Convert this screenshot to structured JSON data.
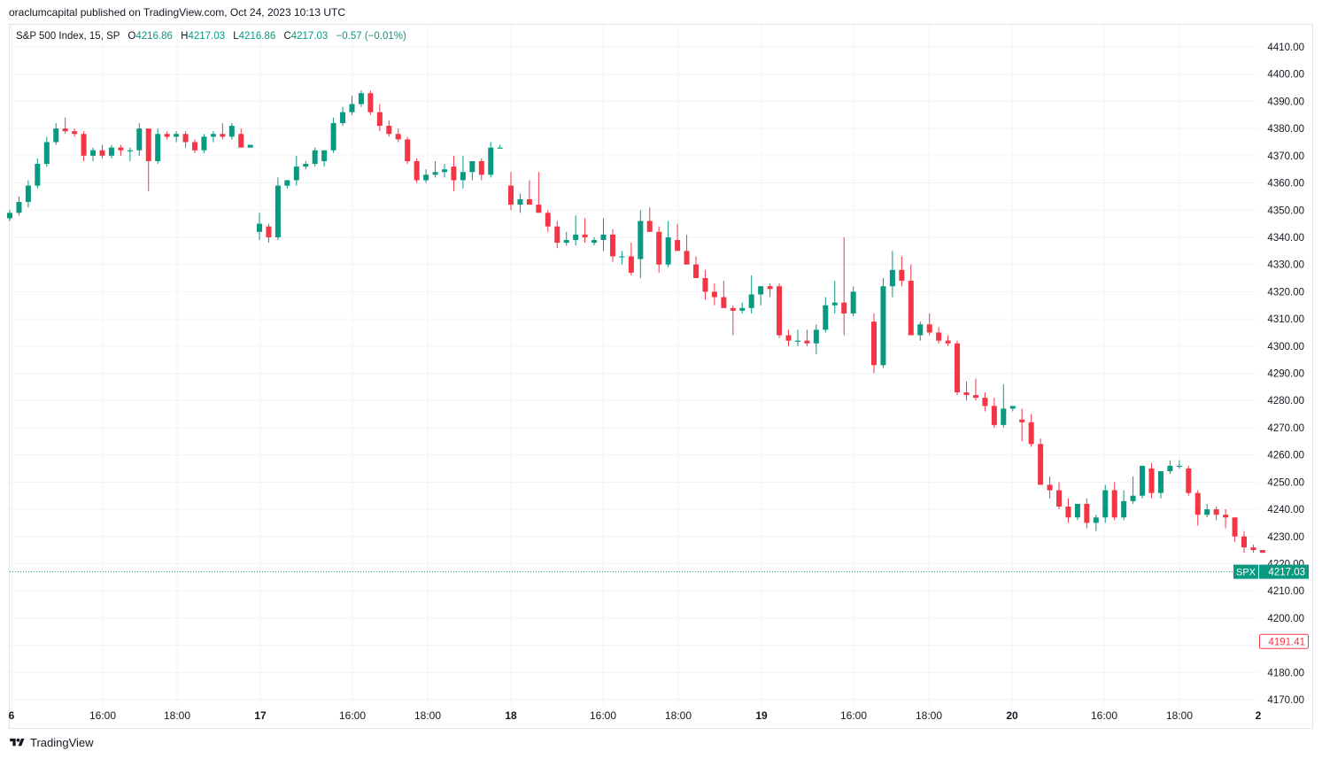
{
  "publisher_line": "oraclumcapital published on TradingView.com, Oct 24, 2023 10:13 UTC",
  "legend": {
    "symbol": "S&P 500 Index, 15, SP",
    "o_label": "O",
    "o_value": "4216.86",
    "h_label": "H",
    "h_value": "4217.03",
    "l_label": "L",
    "l_value": "4216.86",
    "c_label": "C",
    "c_value": "4217.03",
    "change": "−0.57 (−0.01%)"
  },
  "footer": {
    "brand": "TradingView"
  },
  "colors": {
    "up": "#089981",
    "down": "#F23645",
    "grid": "#F0F3FA",
    "text": "#131722"
  },
  "chart_data": {
    "type": "candlestick",
    "ylim": [
      4170,
      4410
    ],
    "yticks": [
      "4410.00",
      "4400.00",
      "4390.00",
      "4380.00",
      "4370.00",
      "4360.00",
      "4350.00",
      "4340.00",
      "4330.00",
      "4320.00",
      "4310.00",
      "4300.00",
      "4290.00",
      "4280.00",
      "4270.00",
      "4260.00",
      "4250.00",
      "4240.00",
      "4230.00",
      "4220.00",
      "4210.00",
      "4200.00",
      "4190.00",
      "4180.00",
      "4170.00"
    ],
    "xticks": [
      "6",
      "16:00",
      "18:00",
      "17",
      "16:00",
      "18:00",
      "18",
      "16:00",
      "18:00",
      "19",
      "16:00",
      "18:00",
      "20",
      "16:00",
      "18:00",
      "2"
    ],
    "last_price": {
      "symbol": "SPX",
      "value": 4217.03,
      "label": "4217.03"
    },
    "low_marker": {
      "value": 4191.41,
      "label": "4191.41"
    },
    "sessions": [
      {
        "bars": [
          [
            4347,
            4350,
            4346,
            4349
          ],
          [
            4349,
            4355,
            4348,
            4353
          ],
          [
            4353,
            4361,
            4351,
            4359
          ],
          [
            4359,
            4369,
            4358,
            4367
          ],
          [
            4367,
            4377,
            4366,
            4375
          ],
          [
            4375,
            4382,
            4374,
            4380
          ],
          [
            4380,
            4384,
            4378,
            4379
          ],
          [
            4379,
            4380,
            4377,
            4378
          ],
          [
            4378,
            4379,
            4368,
            4370
          ],
          [
            4370,
            4373,
            4368,
            4372
          ],
          [
            4372,
            4374,
            4369,
            4370
          ],
          [
            4370,
            4374,
            4369,
            4373
          ],
          [
            4373,
            4374,
            4370,
            4372
          ],
          [
            4372,
            4373,
            4368,
            4372
          ],
          [
            4372,
            4382,
            4370,
            4380
          ],
          [
            4380,
            4380,
            4357,
            4368
          ],
          [
            4368,
            4380,
            4367,
            4378
          ],
          [
            4378,
            4379,
            4376,
            4377
          ],
          [
            4377,
            4379,
            4375,
            4378
          ],
          [
            4378,
            4379,
            4373,
            4375
          ],
          [
            4375,
            4376,
            4371,
            4372
          ],
          [
            4372,
            4378,
            4371,
            4377
          ],
          [
            4377,
            4379,
            4375,
            4378
          ],
          [
            4378,
            4382,
            4376,
            4377
          ],
          [
            4377,
            4382,
            4376,
            4381
          ],
          [
            4378,
            4380,
            4373,
            4373
          ],
          [
            4373,
            4374,
            4373,
            4374
          ]
        ]
      },
      {
        "bars": [
          [
            4342,
            4349,
            4339,
            4345
          ],
          [
            4344,
            4345,
            4338,
            4340
          ],
          [
            4340,
            4362,
            4339,
            4359
          ],
          [
            4359,
            4361,
            4358,
            4361
          ],
          [
            4361,
            4370,
            4359,
            4366
          ],
          [
            4366,
            4368,
            4365,
            4367
          ],
          [
            4367,
            4373,
            4366,
            4372
          ],
          [
            4368,
            4371,
            4366,
            4372
          ],
          [
            4372,
            4384,
            4371,
            4382
          ],
          [
            4382,
            4388,
            4381,
            4386
          ],
          [
            4386,
            4392,
            4385,
            4389
          ],
          [
            4389,
            4394,
            4388,
            4393
          ],
          [
            4393,
            4394,
            4385,
            4386
          ],
          [
            4386,
            4389,
            4379,
            4381
          ],
          [
            4381,
            4383,
            4377,
            4378
          ],
          [
            4378,
            4380,
            4375,
            4376
          ],
          [
            4376,
            4377,
            4367,
            4368
          ],
          [
            4368,
            4369,
            4360,
            4361
          ],
          [
            4361,
            4365,
            4360,
            4363
          ],
          [
            4363,
            4368,
            4362,
            4364
          ],
          [
            4364,
            4367,
            4362,
            4365
          ],
          [
            4366,
            4370,
            4357,
            4361
          ],
          [
            4361,
            4370,
            4358,
            4364
          ],
          [
            4364,
            4368,
            4361,
            4368
          ],
          [
            4368,
            4369,
            4361,
            4363
          ],
          [
            4363,
            4375,
            4362,
            4373
          ],
          [
            4373,
            4374,
            4373,
            4373
          ]
        ]
      },
      {
        "bars": [
          [
            4359,
            4364,
            4350,
            4352
          ],
          [
            4352,
            4356,
            4349,
            4354
          ],
          [
            4354,
            4361,
            4352,
            4352
          ],
          [
            4352,
            4364,
            4350,
            4349
          ],
          [
            4349,
            4350,
            4342,
            4344
          ],
          [
            4344,
            4346,
            4336,
            4338
          ],
          [
            4338,
            4342,
            4337,
            4339
          ],
          [
            4339,
            4348,
            4337,
            4341
          ],
          [
            4341,
            4347,
            4338,
            4340
          ],
          [
            4338,
            4340,
            4337,
            4339
          ],
          [
            4339,
            4347,
            4335,
            4341
          ],
          [
            4341,
            4343,
            4331,
            4333
          ],
          [
            4333,
            4335,
            4330,
            4333
          ],
          [
            4333,
            4338,
            4326,
            4327
          ],
          [
            4332,
            4350,
            4325,
            4346
          ],
          [
            4346,
            4351,
            4344,
            4342
          ],
          [
            4342,
            4344,
            4327,
            4330
          ],
          [
            4330,
            4346,
            4329,
            4340
          ],
          [
            4339,
            4345,
            4338,
            4335
          ],
          [
            4335,
            4341,
            4330,
            4330
          ],
          [
            4330,
            4333,
            4326,
            4325
          ],
          [
            4325,
            4328,
            4317,
            4320
          ],
          [
            4320,
            4323,
            4315,
            4318
          ],
          [
            4318,
            4324,
            4314,
            4314
          ],
          [
            4314,
            4315,
            4304,
            4313
          ],
          [
            4313,
            4316,
            4312,
            4314
          ],
          [
            4314,
            4326,
            4312,
            4319
          ],
          [
            4319,
            4322,
            4315,
            4322
          ],
          [
            4322,
            4323,
            4318,
            4321
          ],
          [
            4322,
            4323,
            4303,
            4304
          ],
          [
            4304,
            4306,
            4300,
            4302
          ],
          [
            4302,
            4306,
            4300,
            4302
          ],
          [
            4302,
            4306,
            4300,
            4301
          ],
          [
            4301,
            4308,
            4297,
            4306
          ],
          [
            4306,
            4318,
            4305,
            4315
          ],
          [
            4315,
            4324,
            4312,
            4316
          ],
          [
            4316,
            4340,
            4304,
            4312
          ],
          [
            4312,
            4322,
            4311,
            4320
          ]
        ]
      },
      {
        "bars": [
          [
            4309,
            4312,
            4290,
            4293
          ],
          [
            4293,
            4325,
            4292,
            4322
          ],
          [
            4322,
            4335,
            4318,
            4328
          ],
          [
            4328,
            4333,
            4322,
            4324
          ],
          [
            4324,
            4330,
            4304,
            4304
          ],
          [
            4304,
            4309,
            4302,
            4308
          ],
          [
            4308,
            4312,
            4304,
            4305
          ],
          [
            4305,
            4307,
            4301,
            4302
          ],
          [
            4302,
            4304,
            4300,
            4301
          ],
          [
            4301,
            4302,
            4282,
            4283
          ],
          [
            4283,
            4287,
            4280,
            4282
          ],
          [
            4282,
            4288,
            4280,
            4281
          ],
          [
            4281,
            4283,
            4276,
            4278
          ],
          [
            4278,
            4281,
            4270,
            4271
          ],
          [
            4271,
            4286,
            4270,
            4277
          ],
          [
            4277,
            4278,
            4276,
            4278
          ],
          [
            4273,
            4277,
            4265,
            4272
          ],
          [
            4272,
            4275,
            4263,
            4264
          ],
          [
            4264,
            4266,
            4249,
            4249
          ],
          [
            4249,
            4252,
            4244,
            4247
          ],
          [
            4247,
            4250,
            4240,
            4241
          ],
          [
            4241,
            4244,
            4235,
            4237
          ],
          [
            4237,
            4242,
            4236,
            4242
          ],
          [
            4242,
            4244,
            4233,
            4235
          ],
          [
            4235,
            4238,
            4232,
            4237
          ],
          [
            4237,
            4249,
            4235,
            4247
          ],
          [
            4247,
            4250,
            4236,
            4237
          ],
          [
            4237,
            4247,
            4236,
            4243
          ],
          [
            4243,
            4252,
            4242,
            4245
          ],
          [
            4245,
            4256,
            4244,
            4256
          ],
          [
            4255,
            4257,
            4244,
            4246
          ],
          [
            4246,
            4254,
            4244,
            4254
          ],
          [
            4254,
            4258,
            4253,
            4256
          ],
          [
            4256,
            4258,
            4255,
            4256
          ],
          [
            4255,
            4256,
            4245,
            4246
          ],
          [
            4246,
            4247,
            4234,
            4238
          ],
          [
            4238,
            4242,
            4237,
            4240
          ],
          [
            4240,
            4241,
            4236,
            4238
          ],
          [
            4238,
            4240,
            4233,
            4237
          ],
          [
            4237,
            4237,
            4228,
            4230
          ],
          [
            4230,
            4232,
            4224,
            4226
          ],
          [
            4226,
            4227,
            4224,
            4225
          ],
          [
            4225,
            4225,
            4224,
            4224
          ]
        ]
      }
    ]
  }
}
